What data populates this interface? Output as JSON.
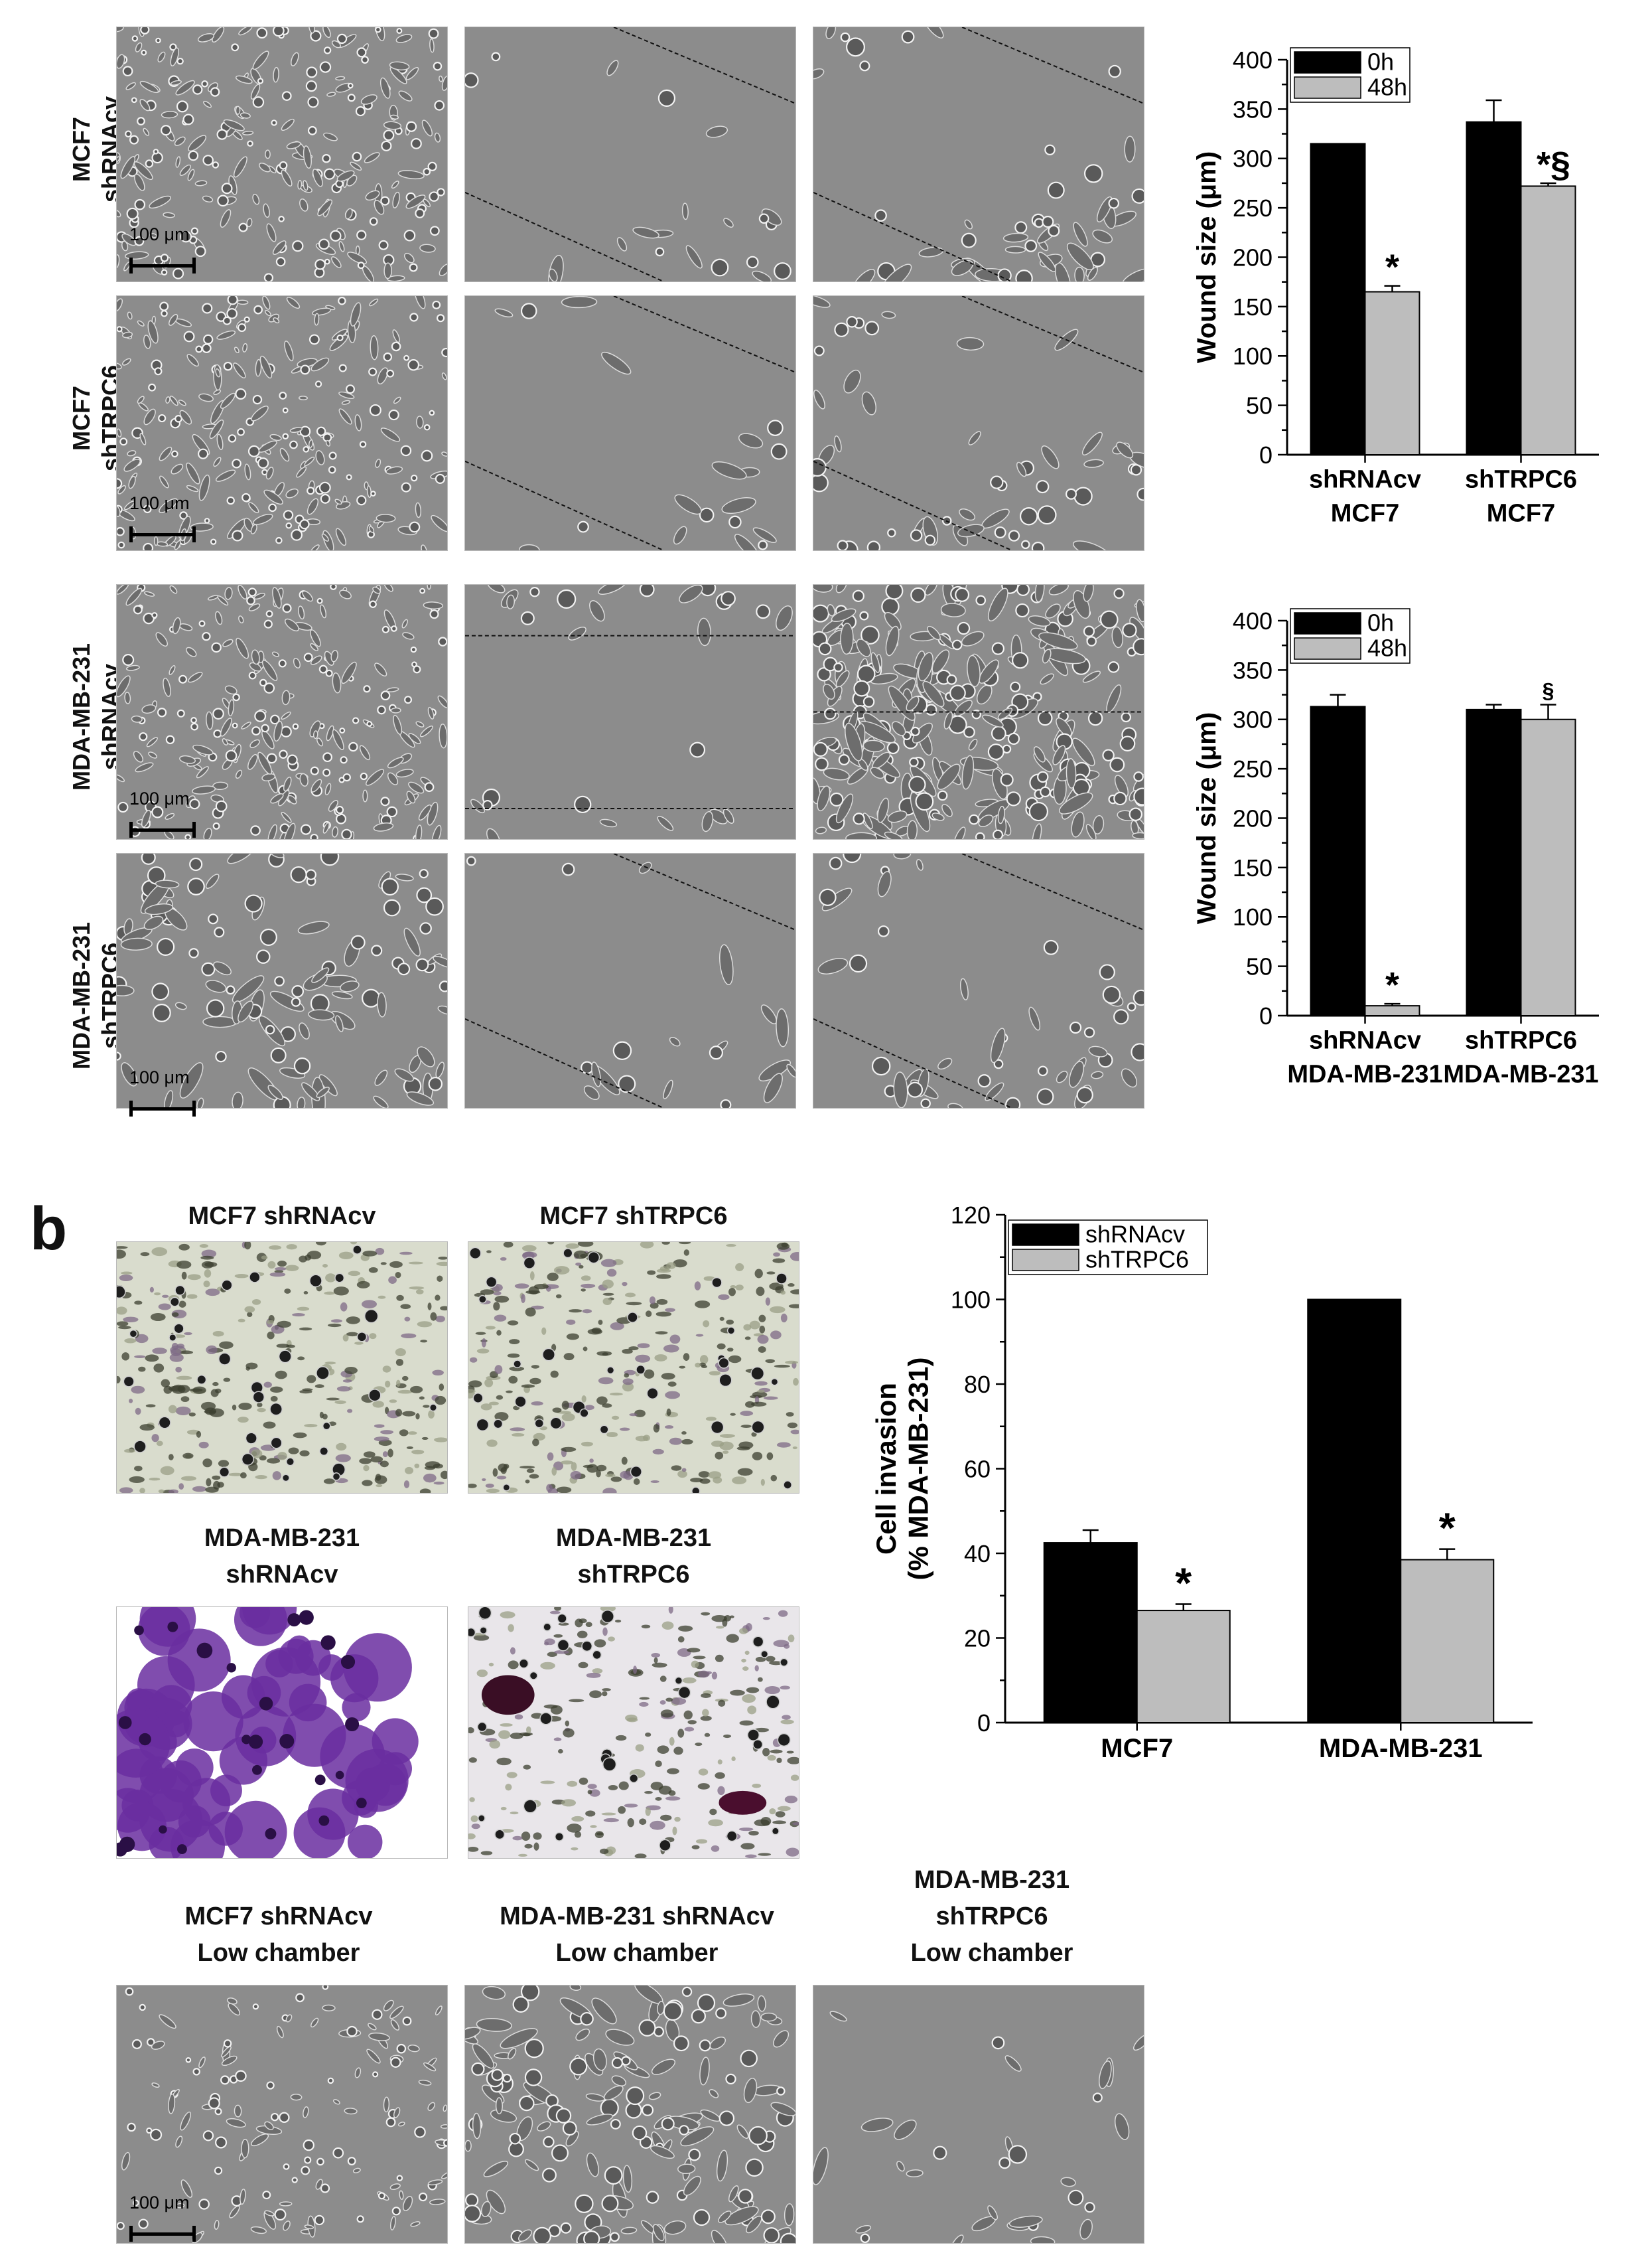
{
  "panel_b_letter": "b",
  "scale_bar_label": "100 μm",
  "wound_rows": [
    {
      "label_lines": [
        "MCF7",
        "shRNAcv"
      ],
      "wound": "diag-open"
    },
    {
      "label_lines": [
        "MCF7",
        "shTRPC6"
      ],
      "wound": "diag-open"
    },
    {
      "label_lines": [
        "MDA-MB-231",
        "shRNAcv"
      ],
      "wound": "closed"
    },
    {
      "label_lines": [
        "MDA-MB-231",
        "shTRPC6"
      ],
      "wound": "diag-open"
    }
  ],
  "invasion_images": [
    {
      "caption_lines": [
        "MCF7 shRNAcv"
      ],
      "style": "stain-light"
    },
    {
      "caption_lines": [
        "MCF7 shTRPC6"
      ],
      "style": "stain-light"
    },
    {
      "caption_lines": [
        "MDA-MB-231",
        "shRNAcv"
      ],
      "style": "stain-heavy"
    },
    {
      "caption_lines": [
        "MDA-MB-231",
        "shTRPC6"
      ],
      "style": "stain-medium"
    }
  ],
  "low_chamber_images": [
    {
      "caption_lines": [
        "MCF7 shRNAcv",
        "Low chamber"
      ],
      "density": "sparse"
    },
    {
      "caption_lines": [
        "MDA-MB-231 shRNAcv",
        "Low chamber"
      ],
      "density": "dense"
    },
    {
      "caption_lines": [
        "MDA-MB-231",
        "shTRPC6",
        "Low chamber"
      ],
      "density": "few"
    }
  ],
  "colors": {
    "black_bar": "#000000",
    "gray_bar": "#bdbdbd",
    "phase_bg": "#8a8a8a",
    "stain_purple": "#6a2ea0"
  },
  "chart_data": [
    {
      "type": "bar",
      "ylabel": "Wound size (μm)",
      "ylim": [
        0,
        400
      ],
      "yticks": [
        0,
        50,
        100,
        150,
        200,
        250,
        300,
        350,
        400
      ],
      "categories": [
        [
          "shRNAcv",
          "MCF7"
        ],
        [
          "shTRPC6",
          "MCF7"
        ]
      ],
      "series": [
        {
          "name": "0h",
          "color": "#000000",
          "values": [
            315,
            337
          ],
          "errors": [
            0,
            22
          ]
        },
        {
          "name": "48h",
          "color": "#bdbdbd",
          "values": [
            165,
            272
          ],
          "errors": [
            6,
            3
          ]
        }
      ],
      "annotations": [
        {
          "series": 1,
          "category": 0,
          "text": "*"
        },
        {
          "series": 1,
          "category": 1,
          "text": "*§"
        }
      ],
      "legend_position": "top-left",
      "grid": false
    },
    {
      "type": "bar",
      "ylabel": "Wound size (μm)",
      "ylim": [
        0,
        400
      ],
      "yticks": [
        0,
        50,
        100,
        150,
        200,
        250,
        300,
        350,
        400
      ],
      "categories": [
        [
          "shRNAcv",
          "MDA-MB-231"
        ],
        [
          "shTRPC6",
          "MDA-MB-231"
        ]
      ],
      "series": [
        {
          "name": "0h",
          "color": "#000000",
          "values": [
            313,
            310
          ],
          "errors": [
            12,
            5
          ]
        },
        {
          "name": "48h",
          "color": "#bdbdbd",
          "values": [
            10,
            300
          ],
          "errors": [
            2,
            15
          ]
        }
      ],
      "annotations": [
        {
          "series": 1,
          "category": 0,
          "text": "*"
        },
        {
          "series": 1,
          "category": 1,
          "text": "§"
        }
      ],
      "legend_position": "top-left",
      "grid": false
    },
    {
      "type": "bar",
      "ylabel": [
        "Cell invasion",
        "(% MDA-MB-231)"
      ],
      "ylim": [
        0,
        120
      ],
      "yticks": [
        0,
        20,
        40,
        60,
        80,
        100,
        120
      ],
      "categories": [
        [
          "MCF7"
        ],
        [
          "MDA-MB-231"
        ]
      ],
      "series": [
        {
          "name": "shRNAcv",
          "color": "#000000",
          "values": [
            42.5,
            100
          ],
          "errors": [
            3,
            0
          ]
        },
        {
          "name": "shTRPC6",
          "color": "#bdbdbd",
          "values": [
            26.5,
            38.5
          ],
          "errors": [
            1.5,
            2.5
          ]
        }
      ],
      "annotations": [
        {
          "series": 1,
          "category": 0,
          "text": "*"
        },
        {
          "series": 1,
          "category": 1,
          "text": "*"
        }
      ],
      "legend_position": "top-left",
      "grid": false
    }
  ]
}
